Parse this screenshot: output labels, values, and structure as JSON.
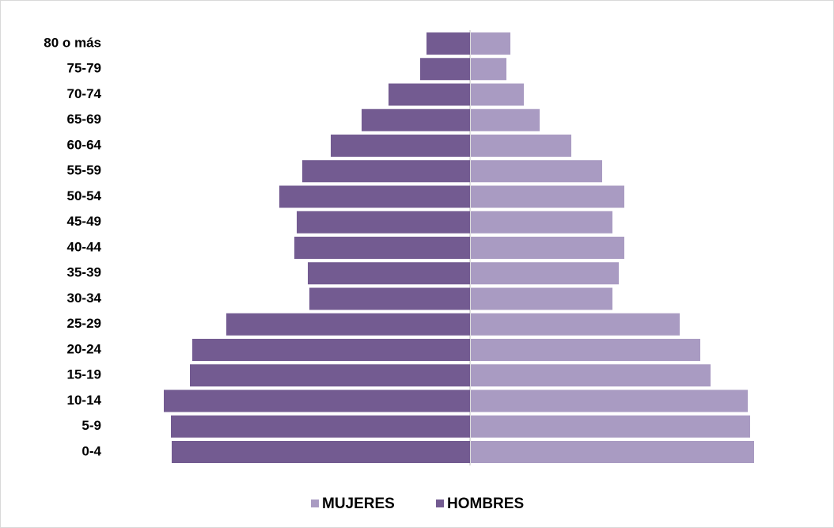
{
  "chart_data": {
    "type": "pyramid",
    "categories": [
      "80 o más",
      "75-79",
      "70-74",
      "65-69",
      "60-64",
      "55-59",
      "50-54",
      "45-49",
      "40-44",
      "35-39",
      "30-34",
      "25-29",
      "20-24",
      "15-19",
      "10-14",
      "5-9",
      "0-4"
    ],
    "series": [
      {
        "name": "MUJERES",
        "color": "#a99bc2",
        "values": [
          50,
          45,
          67,
          87,
          127,
          166,
          194,
          179,
          194,
          187,
          179,
          264,
          290,
          303,
          350,
          353,
          358
        ]
      },
      {
        "name": "HOMBRES",
        "color": "#735b91",
        "values": [
          55,
          63,
          103,
          137,
          176,
          212,
          241,
          219,
          222,
          205,
          203,
          308,
          351,
          354,
          387,
          378,
          377
        ]
      }
    ]
  }
}
